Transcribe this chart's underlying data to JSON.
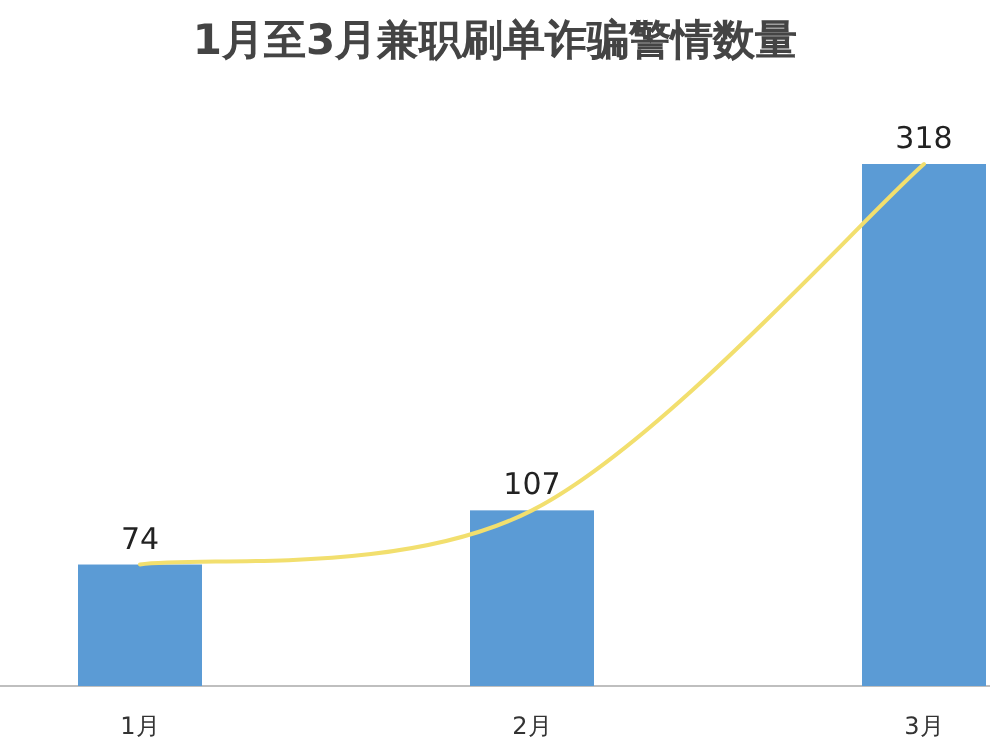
{
  "chart_data": {
    "type": "bar",
    "title": "1月至3月兼职刷单诈骗警情数量",
    "categories": [
      "1月",
      "2月",
      "3月"
    ],
    "series": [
      {
        "color": "#5b9bd5",
        "values": [
          74,
          107,
          318
        ],
        "value_labels": [
          "74",
          "107",
          "318"
        ]
      },
      {
        "type": "line",
        "color": "#f2df6e",
        "values": [
          74,
          107,
          318
        ]
      }
    ]
  }
}
